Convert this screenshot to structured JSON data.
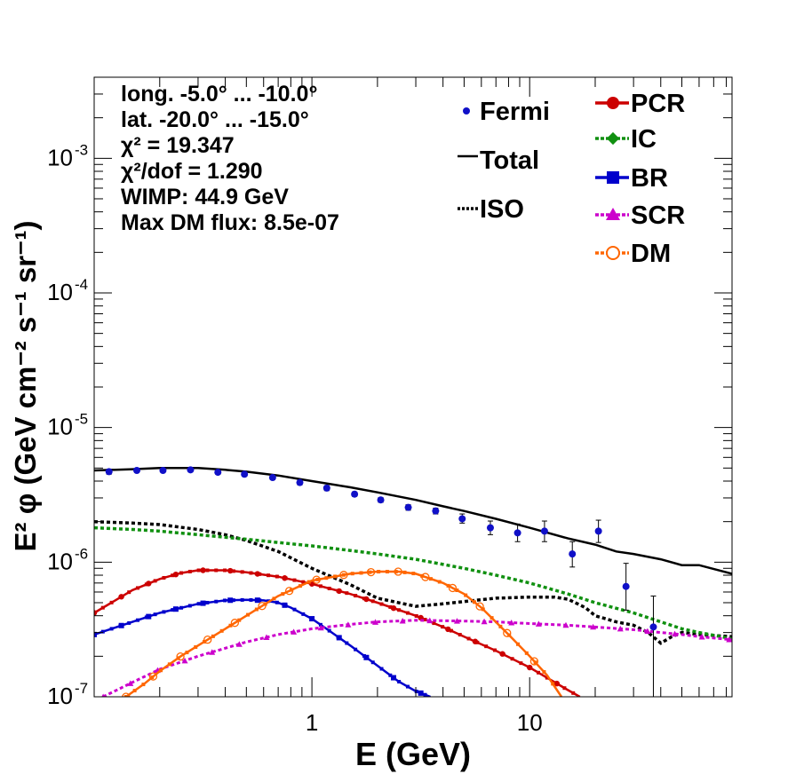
{
  "chart_data": {
    "type": "line",
    "xlabel": "E (GeV)",
    "ylabel": "E² φ (GeV cm⁻² s⁻¹ sr⁻¹)",
    "x_scale": "log",
    "y_scale": "log",
    "xlim": [
      0.1,
      85
    ],
    "ylim": [
      1e-07,
      0.004
    ],
    "x_ticks": [
      {
        "value": 1,
        "label": "1"
      },
      {
        "value": 10,
        "label": "10"
      }
    ],
    "y_ticks": [
      {
        "value": 1e-07,
        "base": "10",
        "exp": "-7"
      },
      {
        "value": 1e-06,
        "base": "10",
        "exp": "-6"
      },
      {
        "value": 1e-05,
        "base": "10",
        "exp": "-5"
      },
      {
        "value": 0.0001,
        "base": "10",
        "exp": "-4"
      },
      {
        "value": 0.001,
        "base": "10",
        "exp": "-3"
      }
    ],
    "info_lines": [
      "long. -5.0° ... -10.0°",
      "lat. -20.0° ... -15.0°",
      "χ² = 19.347",
      "χ²/dof = 1.290",
      "WIMP: 44.9 GeV",
      "Max DM flux: 8.5e-07"
    ],
    "legend": [
      {
        "name": "Fermi",
        "style": "point"
      },
      {
        "name": "Total",
        "style": "line"
      },
      {
        "name": "ISO",
        "style": "dotted"
      },
      {
        "name": "PCR",
        "style": "line-circle"
      },
      {
        "name": "IC",
        "style": "line-star"
      },
      {
        "name": "BR",
        "style": "line-square"
      },
      {
        "name": "SCR",
        "style": "line-triangle"
      },
      {
        "name": "DM",
        "style": "dotted-open-circle"
      }
    ],
    "colors": {
      "Fermi": "#1010c8",
      "Total": "#000000",
      "ISO": "#000000",
      "PCR": "#cc0000",
      "IC": "#109010",
      "BR": "#0000cc",
      "SCR": "#cc00cc",
      "DM": "#ff6600"
    },
    "fermi": {
      "x": [
        0.117,
        0.157,
        0.207,
        0.277,
        0.37,
        0.49,
        0.66,
        0.88,
        1.17,
        1.57,
        2.07,
        2.77,
        3.7,
        4.9,
        6.6,
        8.8,
        11.7,
        15.7,
        20.7,
        27.7,
        37,
        49,
        66
      ],
      "y": [
        4.7e-06,
        4.8e-06,
        4.8e-06,
        4.85e-06,
        4.65e-06,
        4.5e-06,
        4.25e-06,
        3.9e-06,
        3.55e-06,
        3.2e-06,
        2.9e-06,
        2.55e-06,
        2.4e-06,
        2.1e-06,
        1.8e-06,
        1.65e-06,
        1.7e-06,
        1.15e-06,
        1.7e-06,
        6.6e-07,
        3.3e-07,
        null,
        null
      ],
      "err_lo": [
        4.5e-06,
        4.65e-06,
        4.65e-06,
        4.7e-06,
        4.5e-06,
        4.35e-06,
        4.1e-06,
        3.75e-06,
        3.4e-06,
        3.08e-06,
        2.78e-06,
        2.43e-06,
        2.28e-06,
        1.95e-06,
        1.6e-06,
        1.42e-06,
        1.42e-06,
        9.2e-07,
        1.4e-06,
        4.4e-07,
        1e-07,
        null,
        null
      ],
      "err_hi": [
        4.9e-06,
        4.95e-06,
        4.95e-06,
        5e-06,
        4.8e-06,
        4.65e-06,
        4.4e-06,
        4.05e-06,
        3.7e-06,
        3.32e-06,
        3.02e-06,
        2.67e-06,
        2.52e-06,
        2.28e-06,
        2.02e-06,
        1.92e-06,
        2.02e-06,
        1.42e-06,
        2.05e-06,
        9.8e-07,
        5.6e-07,
        null,
        null
      ]
    },
    "series": [
      {
        "name": "Total",
        "x": [
          0.1,
          0.15,
          0.2,
          0.3,
          0.4,
          0.5,
          0.7,
          1,
          1.5,
          2,
          3,
          4,
          5,
          7,
          10,
          15,
          20,
          25,
          30,
          40,
          50,
          60,
          85
        ],
        "y": [
          4.8e-06,
          4.9e-06,
          5e-06,
          5e-06,
          4.85e-06,
          4.7e-06,
          4.4e-06,
          4e-06,
          3.6e-06,
          3.3e-06,
          2.9e-06,
          2.6e-06,
          2.4e-06,
          2.1e-06,
          1.8e-06,
          1.5e-06,
          1.35e-06,
          1.2e-06,
          1.15e-06,
          1.05e-06,
          9.5e-07,
          9.5e-07,
          8.2e-07
        ]
      },
      {
        "name": "ISO",
        "x": [
          0.1,
          0.15,
          0.2,
          0.3,
          0.4,
          0.5,
          0.7,
          1,
          1.5,
          2,
          3,
          4,
          5,
          7,
          10,
          13,
          15,
          18,
          20,
          25,
          30,
          35,
          40,
          45,
          50,
          60,
          70,
          85
        ],
        "y": [
          2e-06,
          1.95e-06,
          1.9e-06,
          1.75e-06,
          1.6e-06,
          1.45e-06,
          1.2e-06,
          9e-07,
          6.8e-07,
          5.4e-07,
          4.7e-07,
          4.9e-07,
          5.1e-07,
          5.4e-07,
          5.5e-07,
          5.5e-07,
          5.3e-07,
          4.6e-07,
          4e-07,
          3.6e-07,
          3.4e-07,
          3e-07,
          2.5e-07,
          2.8e-07,
          3e-07,
          2.9e-07,
          2.85e-07,
          2.8e-07
        ]
      },
      {
        "name": "IC",
        "x": [
          0.1,
          0.15,
          0.2,
          0.3,
          0.5,
          0.7,
          1,
          1.5,
          2,
          3,
          5,
          7,
          10,
          15,
          20,
          30,
          40,
          50,
          60,
          85
        ],
        "y": [
          1.8e-06,
          1.75e-06,
          1.7e-06,
          1.6e-06,
          1.48e-06,
          1.4e-06,
          1.32e-06,
          1.22e-06,
          1.15e-06,
          1.05e-06,
          9e-07,
          8e-07,
          7e-07,
          5.8e-07,
          5e-07,
          4.2e-07,
          3.6e-07,
          3.2e-07,
          3e-07,
          2.7e-07
        ]
      },
      {
        "name": "PCR",
        "x": [
          0.1,
          0.12,
          0.15,
          0.2,
          0.25,
          0.3,
          0.4,
          0.5,
          0.7,
          1,
          1.5,
          2,
          3,
          4,
          5,
          7,
          10,
          15,
          17
        ],
        "y": [
          4.2e-07,
          5e-07,
          6.2e-07,
          7.5e-07,
          8.3e-07,
          8.7e-07,
          8.7e-07,
          8.4e-07,
          7.8e-07,
          6.9e-07,
          5.8e-07,
          5e-07,
          4e-07,
          3.3e-07,
          2.8e-07,
          2.2e-07,
          1.65e-07,
          1.12e-07,
          1e-07
        ]
      },
      {
        "name": "BR",
        "x": [
          0.1,
          0.15,
          0.2,
          0.3,
          0.4,
          0.5,
          0.6,
          0.7,
          0.8,
          1,
          1.2,
          1.5,
          2,
          2.5,
          3,
          3.5
        ],
        "y": [
          2.9e-07,
          3.6e-07,
          4.2e-07,
          4.9e-07,
          5.2e-07,
          5.25e-07,
          5.2e-07,
          5e-07,
          4.6e-07,
          3.8e-07,
          3.1e-07,
          2.4e-07,
          1.7e-07,
          1.3e-07,
          1.1e-07,
          1e-07
        ]
      },
      {
        "name": "SCR",
        "x": [
          0.11,
          0.15,
          0.2,
          0.3,
          0.5,
          0.7,
          1,
          1.5,
          2,
          3,
          5,
          7,
          10,
          15,
          20,
          30,
          40,
          50,
          60,
          85
        ],
        "y": [
          1e-07,
          1.28e-07,
          1.6e-07,
          2e-07,
          2.55e-07,
          2.9e-07,
          3.2e-07,
          3.45e-07,
          3.6e-07,
          3.7e-07,
          3.65e-07,
          3.6e-07,
          3.5e-07,
          3.4e-07,
          3.3e-07,
          3.15e-07,
          3e-07,
          2.9e-07,
          2.8e-07,
          2.65e-07
        ]
      },
      {
        "name": "DM",
        "x": [
          0.14,
          0.17,
          0.2,
          0.25,
          0.3,
          0.4,
          0.5,
          0.7,
          1,
          1.5,
          2,
          2.5,
          3,
          4,
          5,
          6,
          8,
          10,
          12,
          14
        ],
        "y": [
          1e-07,
          1.25e-07,
          1.55e-07,
          2e-07,
          2.4e-07,
          3.2e-07,
          4e-07,
          5.6e-07,
          7.3e-07,
          8.2e-07,
          8.5e-07,
          8.5e-07,
          8.2e-07,
          7e-07,
          5.8e-07,
          4.6e-07,
          2.9e-07,
          2e-07,
          1.45e-07,
          1e-07
        ]
      }
    ]
  }
}
